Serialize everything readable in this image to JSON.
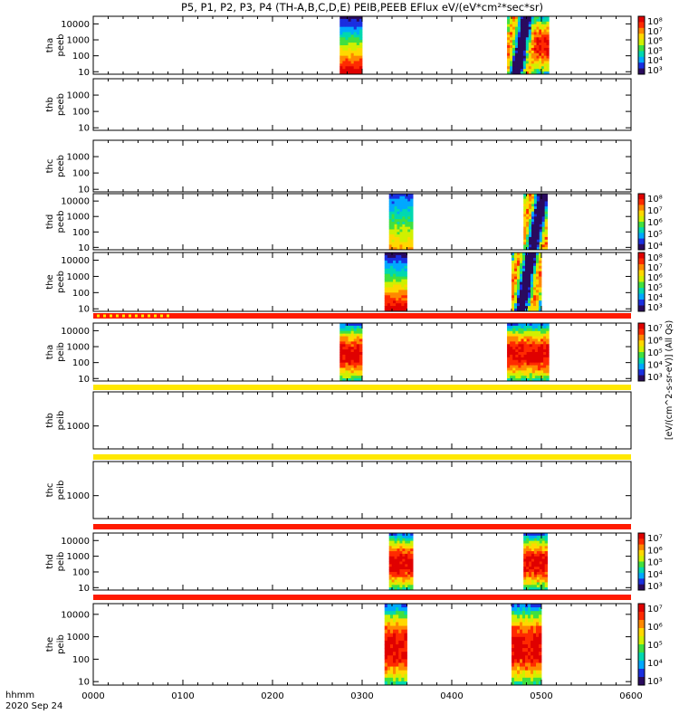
{
  "title": "P5, P1, P2, P3, P4 (TH-A,B,C,D,E) PEIB,PEEB EFlux eV/(eV*cm²*sec*sr)",
  "bottom_labels": {
    "line1": "hhmm",
    "line2": "2020 Sep 24"
  },
  "colorbar_label": "[eV/(cm^2-s-sr-eV)] (All Qs)",
  "chart_data": {
    "type": "heatmap",
    "x_unit": "hhmm",
    "xlim": [
      "0000",
      "0600"
    ],
    "x_ticks": [
      "0000",
      "0100",
      "0200",
      "0300",
      "0400",
      "0500",
      "0600"
    ],
    "y_scale": "log",
    "colormap": [
      "#2a0a5e",
      "#1a2fe0",
      "#00a8ff",
      "#00d8b0",
      "#40e040",
      "#d0f000",
      "#ffd800",
      "#ff8800",
      "#ff2a00",
      "#e00000"
    ],
    "panels": [
      {
        "probe": "tha",
        "species": "peeb",
        "ylabel_1": "tha",
        "ylabel_2": "peeb",
        "ylim": [
          7,
          30000
        ],
        "yticks": [
          "10",
          "100",
          "1000",
          "10000"
        ],
        "colorbar": {
          "ticks": [
            "10⁸",
            "10⁷",
            "10⁶",
            "10⁵",
            "10⁴",
            "10³"
          ]
        },
        "blocks": [
          {
            "start": "0245",
            "end": "0300",
            "profile": "cold"
          },
          {
            "start": "0437",
            "end": "0455",
            "profile": "mixed"
          },
          {
            "start": "0455",
            "end": "0505",
            "profile": "hot"
          }
        ]
      },
      {
        "probe": "thb",
        "species": "peeb",
        "ylabel_1": "thb",
        "ylabel_2": "peeb",
        "ylim": [
          7,
          10000
        ],
        "yticks": [
          "10",
          "100",
          "1000"
        ],
        "colorbar": null,
        "blocks": []
      },
      {
        "probe": "thc",
        "species": "peeb",
        "ylabel_1": "thc",
        "ylabel_2": "peeb",
        "ylim": [
          7,
          10000
        ],
        "yticks": [
          "10",
          "100",
          "1000"
        ],
        "colorbar": null,
        "blocks": []
      },
      {
        "probe": "thd",
        "species": "peeb",
        "ylabel_1": "thd",
        "ylabel_2": "peeb",
        "ylim": [
          7,
          30000
        ],
        "yticks": [
          "10",
          "100",
          "1000",
          "10000"
        ],
        "colorbar": {
          "ticks": [
            "10⁸",
            "10⁷",
            "10⁶",
            "10⁵",
            "10⁴"
          ]
        },
        "blocks": [
          {
            "start": "0318",
            "end": "0334",
            "profile": "blue"
          },
          {
            "start": "0448",
            "end": "0504",
            "profile": "mixed"
          }
        ]
      },
      {
        "probe": "the",
        "species": "peeb",
        "ylabel_1": "the",
        "ylabel_2": "peeb",
        "ylim": [
          7,
          30000
        ],
        "yticks": [
          "10",
          "100",
          "1000",
          "10000"
        ],
        "colorbar": {
          "ticks": [
            "10⁸",
            "10⁷",
            "10⁶",
            "10⁵",
            "10⁴",
            "10³"
          ]
        },
        "blocks": [
          {
            "start": "0315",
            "end": "0330",
            "profile": "cold"
          },
          {
            "start": "0440",
            "end": "0500",
            "profile": "mixed"
          }
        ]
      },
      {
        "probe": "tha",
        "species": "peib",
        "ylabel_1": "tha",
        "ylabel_2": "peib",
        "ylim": [
          7,
          30000
        ],
        "yticks": [
          "10",
          "100",
          "1000",
          "10000"
        ],
        "colorbar": {
          "ticks": [
            "10⁷",
            "10⁶",
            "10⁵",
            "10⁴",
            "10³"
          ]
        },
        "blocks": [
          {
            "start": "0245",
            "end": "0300",
            "profile": "ion"
          },
          {
            "start": "0437",
            "end": "0505",
            "profile": "ion"
          }
        ]
      },
      {
        "probe": "thb",
        "species": "peib",
        "ylabel_1": "thb",
        "ylabel_2": "peib",
        "ylim": [
          300,
          6000
        ],
        "yticks": [
          "1000"
        ],
        "colorbar": null,
        "blocks": []
      },
      {
        "probe": "thc",
        "species": "peib",
        "ylabel_1": "thc",
        "ylabel_2": "peib",
        "ylim": [
          300,
          6000
        ],
        "yticks": [
          "1000"
        ],
        "colorbar": null,
        "blocks": []
      },
      {
        "probe": "thd",
        "species": "peib",
        "ylabel_1": "thd",
        "ylabel_2": "peib",
        "ylim": [
          7,
          30000
        ],
        "yticks": [
          "10",
          "100",
          "1000",
          "10000"
        ],
        "colorbar": {
          "ticks": [
            "10⁷",
            "10⁶",
            "10⁵",
            "10⁴",
            "10³"
          ]
        },
        "blocks": [
          {
            "start": "0318",
            "end": "0334",
            "profile": "ion"
          },
          {
            "start": "0448",
            "end": "0504",
            "profile": "ion"
          }
        ]
      },
      {
        "probe": "the",
        "species": "peib",
        "ylabel_1": "the",
        "ylabel_2": "peib",
        "ylim": [
          7,
          30000
        ],
        "yticks": [
          "10",
          "100",
          "1000",
          "10000"
        ],
        "colorbar": {
          "ticks": [
            "10⁷",
            "10⁶",
            "10⁵",
            "10⁴",
            "10³"
          ]
        },
        "blocks": [
          {
            "start": "0315",
            "end": "0330",
            "profile": "ion"
          },
          {
            "start": "0440",
            "end": "0500",
            "profile": "ion"
          }
        ]
      }
    ],
    "separators": [
      {
        "after_panel": 4,
        "color": "red",
        "has_yellow_dots": true
      },
      {
        "after_panel": 5,
        "color": "yellow",
        "has_yellow_dots": false
      },
      {
        "after_panel": 6,
        "color": "yellow",
        "has_yellow_dots": false
      },
      {
        "after_panel": 7,
        "color": "red",
        "has_yellow_dots": false
      },
      {
        "after_panel": 8,
        "color": "red",
        "has_yellow_dots": false
      }
    ]
  }
}
